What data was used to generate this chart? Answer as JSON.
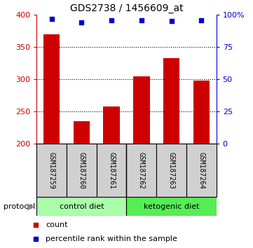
{
  "title": "GDS2738 / 1456609_at",
  "samples": [
    "GSM187259",
    "GSM187260",
    "GSM187261",
    "GSM187262",
    "GSM187263",
    "GSM187264"
  ],
  "bar_values": [
    370,
    235,
    258,
    305,
    333,
    298
  ],
  "percentile_ranks": [
    97,
    94,
    96,
    96,
    95,
    96
  ],
  "ylim_left": [
    200,
    400
  ],
  "ylim_right": [
    0,
    100
  ],
  "yticks_left": [
    200,
    250,
    300,
    350,
    400
  ],
  "yticks_right": [
    0,
    25,
    50,
    75,
    100
  ],
  "bar_color": "#cc0000",
  "scatter_color": "#0000cc",
  "groups": [
    {
      "label": "control diet",
      "indices": [
        0,
        1,
        2
      ],
      "color": "#aaffaa"
    },
    {
      "label": "ketogenic diet",
      "indices": [
        3,
        4,
        5
      ],
      "color": "#55ee55"
    }
  ],
  "protocol_label": "protocol",
  "legend_items": [
    {
      "label": "count",
      "color": "#cc0000"
    },
    {
      "label": "percentile rank within the sample",
      "color": "#0000cc"
    }
  ],
  "grid_yticks": [
    250,
    300,
    350
  ],
  "label_box_color": "#d0d0d0",
  "sample_label_fontsize": 7,
  "axis_label_fontsize": 8
}
